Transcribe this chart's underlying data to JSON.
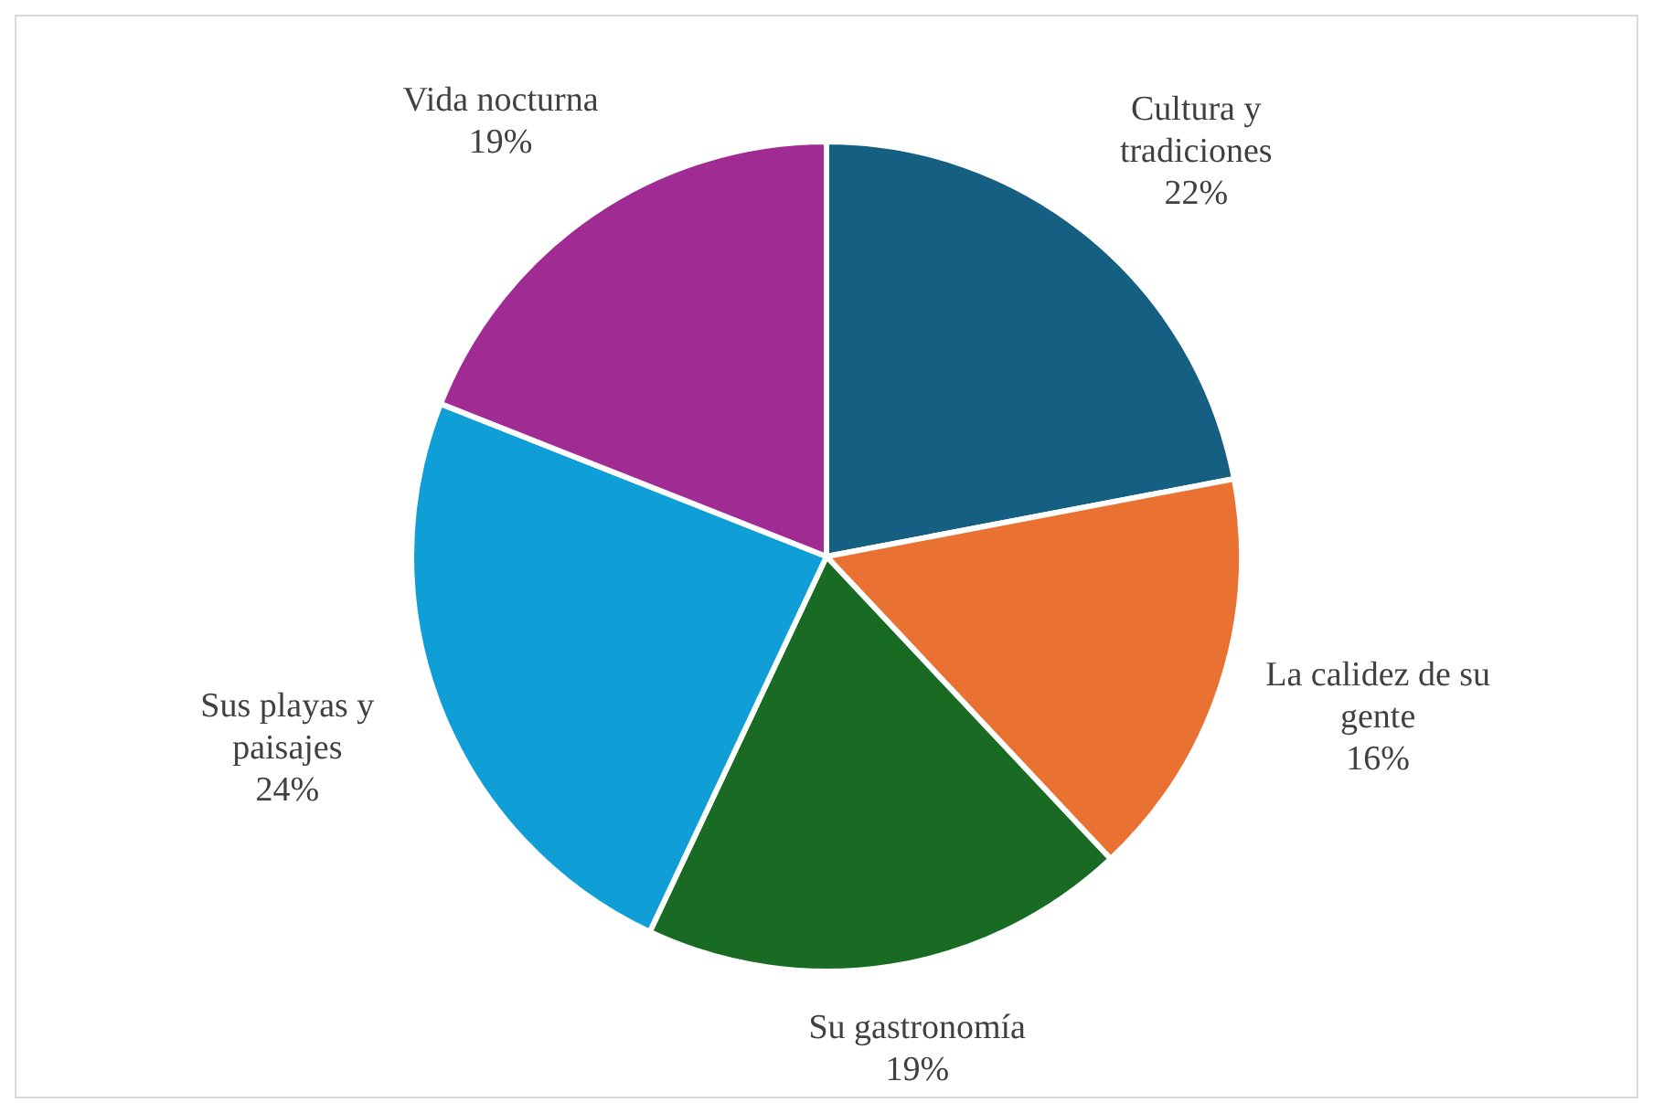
{
  "chart_data": {
    "type": "pie",
    "categories": [
      "Cultura y tradiciones",
      "La calidez de su gente",
      "Su gastronomía",
      "Sus playas y paisajes",
      "Vida nocturna"
    ],
    "values": [
      22,
      16,
      19,
      24,
      19
    ],
    "colors": [
      "#156082",
      "#e97132",
      "#196b24",
      "#0f9ed5",
      "#a02b93"
    ],
    "value_labels": [
      "22%",
      "16%",
      "19%",
      "24%",
      "19%"
    ],
    "legend": false
  }
}
